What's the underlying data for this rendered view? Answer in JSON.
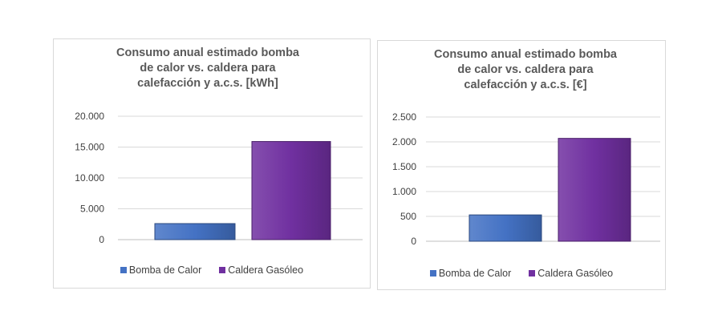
{
  "chart_data": [
    {
      "type": "bar",
      "title": "Consumo anual estimado bomba de calor vs. caldera para calefacción y a.c.s. [kWh]",
      "title_lines": [
        "Consumo anual estimado bomba",
        "de calor vs. caldera para",
        "calefacción y a.c.s. [kWh]"
      ],
      "categories": [
        "Bomba de Calor",
        "Caldera Gasóleo"
      ],
      "values": [
        2600,
        15900
      ],
      "ylim": [
        0,
        20000
      ],
      "yticks": [
        0,
        5000,
        10000,
        15000,
        20000
      ],
      "ytick_labels": [
        "0",
        "5.000",
        "10.000",
        "15.000",
        "20.000"
      ],
      "grid": true,
      "legend_position": "bottom",
      "colors": [
        "#4472c4",
        "#7030a0"
      ]
    },
    {
      "type": "bar",
      "title": "Consumo anual estimado bomba de calor vs. caldera para calefacción y a.c.s. [€]",
      "title_lines": [
        "Consumo anual estimado bomba",
        "de calor vs. caldera para",
        "calefacción y a.c.s. [€]"
      ],
      "categories": [
        "Bomba de Calor",
        "Caldera Gasóleo"
      ],
      "values": [
        530,
        2070
      ],
      "ylim": [
        0,
        2500
      ],
      "yticks": [
        0,
        500,
        1000,
        1500,
        2000,
        2500
      ],
      "ytick_labels": [
        "0",
        "500",
        "1.000",
        "1.500",
        "2.000",
        "2.500"
      ],
      "grid": true,
      "legend_position": "bottom",
      "colors": [
        "#4472c4",
        "#7030a0"
      ]
    }
  ]
}
